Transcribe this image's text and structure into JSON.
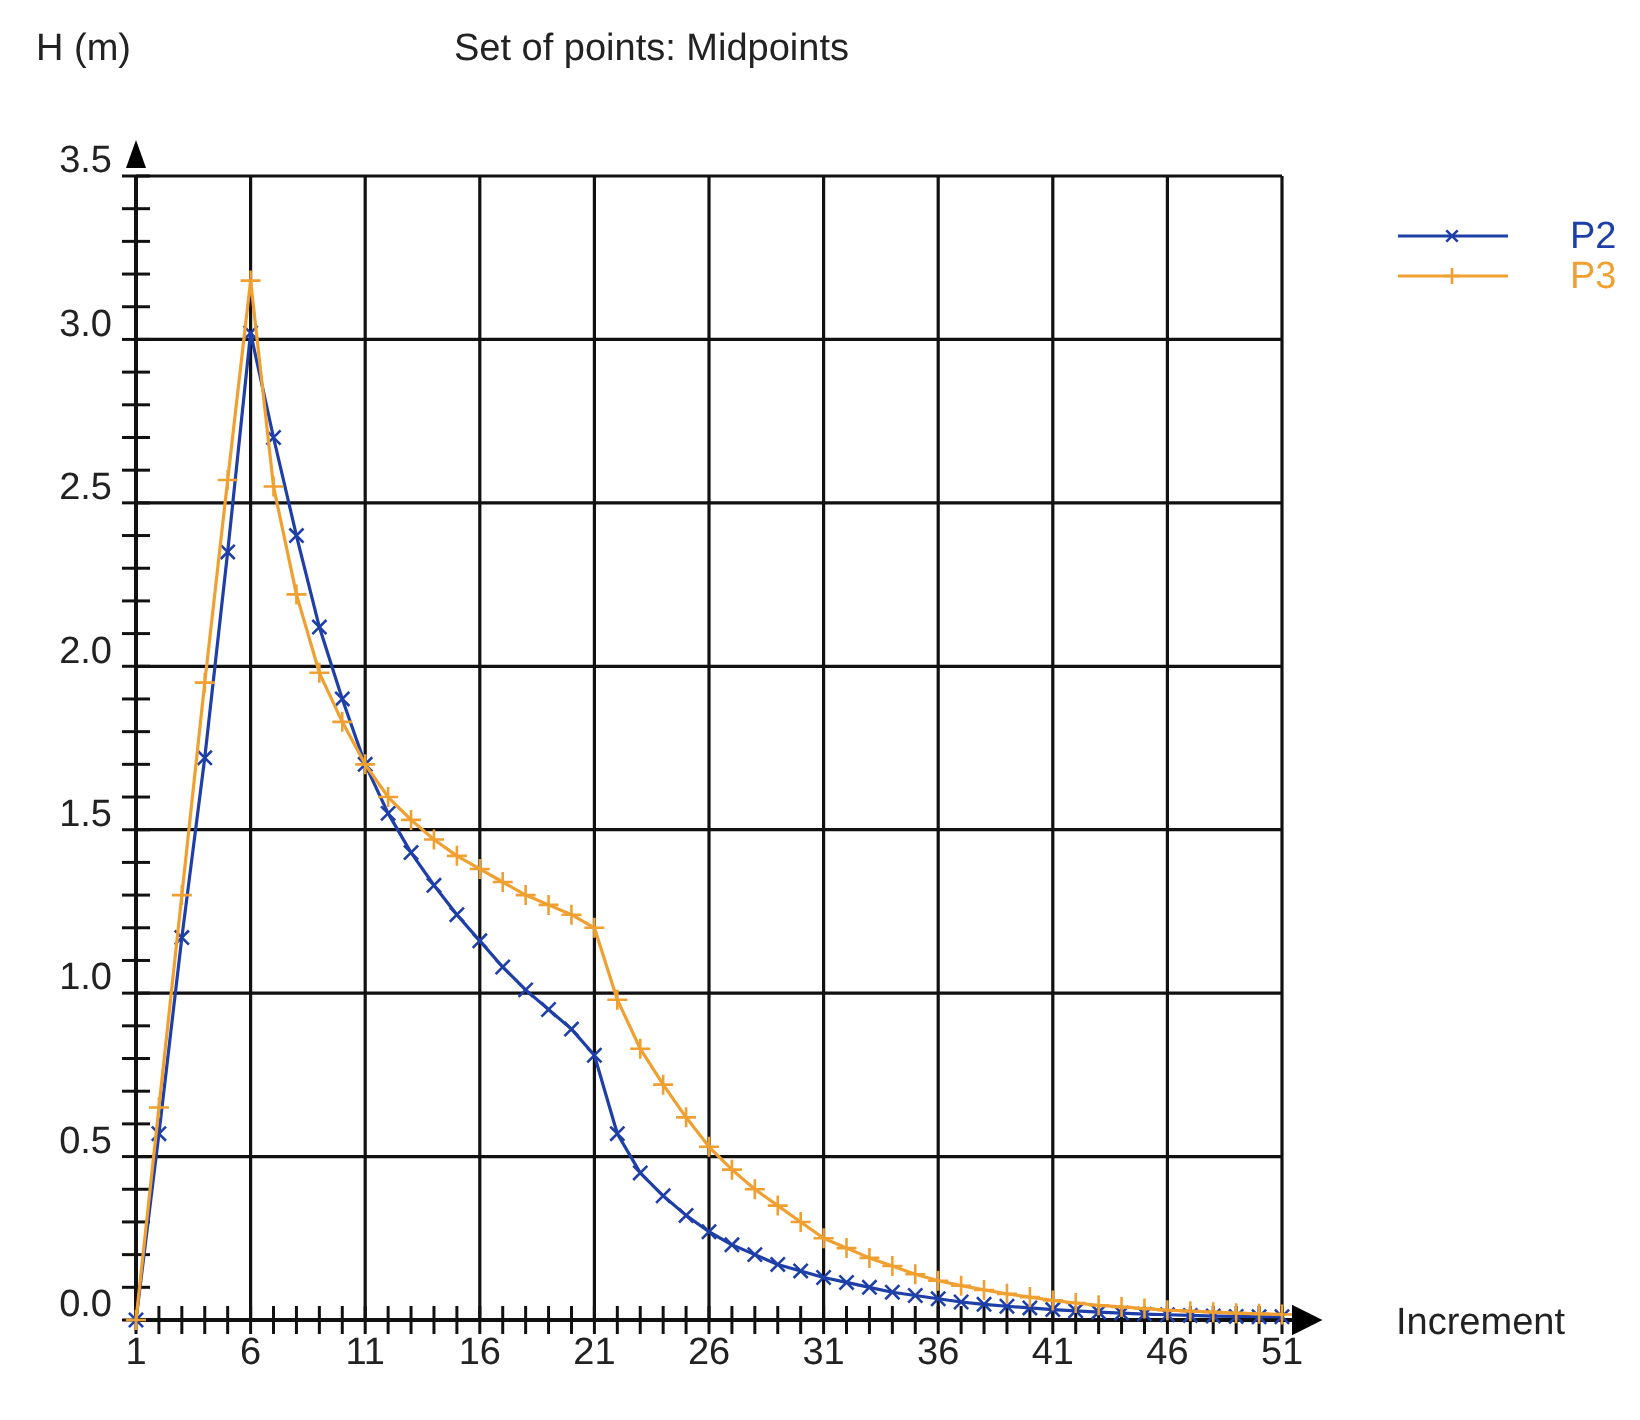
{
  "chart_data": {
    "type": "line",
    "title": "Set of points: Midpoints",
    "ylabel": "H (m)",
    "xlabel": "Increment",
    "x": [
      1,
      2,
      3,
      4,
      5,
      6,
      7,
      8,
      9,
      10,
      11,
      12,
      13,
      14,
      15,
      16,
      17,
      18,
      19,
      20,
      21,
      22,
      23,
      24,
      25,
      26,
      27,
      28,
      29,
      30,
      31,
      32,
      33,
      34,
      35,
      36,
      37,
      38,
      39,
      40,
      41,
      42,
      43,
      44,
      45,
      46,
      47,
      48,
      49,
      50,
      51
    ],
    "series": [
      {
        "name": "P2",
        "color": "#1f3fa8",
        "values": [
          0,
          0.57,
          1.17,
          1.72,
          2.35,
          3.02,
          2.7,
          2.4,
          2.12,
          1.9,
          1.7,
          1.55,
          1.43,
          1.33,
          1.24,
          1.16,
          1.08,
          1.01,
          0.95,
          0.89,
          0.81,
          0.57,
          0.45,
          0.38,
          0.32,
          0.27,
          0.23,
          0.2,
          0.17,
          0.15,
          0.13,
          0.115,
          0.1,
          0.085,
          0.075,
          0.065,
          0.055,
          0.048,
          0.042,
          0.037,
          0.032,
          0.028,
          0.024,
          0.021,
          0.018,
          0.016,
          0.014,
          0.012,
          0.011,
          0.01,
          0.01
        ]
      },
      {
        "name": "P3",
        "color": "#f0a030",
        "values": [
          0,
          0.65,
          1.3,
          1.95,
          2.57,
          3.18,
          2.55,
          2.22,
          1.98,
          1.83,
          1.7,
          1.6,
          1.53,
          1.47,
          1.42,
          1.38,
          1.34,
          1.3,
          1.27,
          1.24,
          1.2,
          0.98,
          0.83,
          0.72,
          0.62,
          0.53,
          0.46,
          0.4,
          0.35,
          0.3,
          0.25,
          0.22,
          0.19,
          0.165,
          0.14,
          0.12,
          0.105,
          0.092,
          0.08,
          0.07,
          0.06,
          0.052,
          0.045,
          0.04,
          0.035,
          0.03,
          0.027,
          0.024,
          0.021,
          0.019,
          0.017
        ]
      }
    ],
    "xlim": [
      1,
      51
    ],
    "xticks": [
      1,
      {
        "value": 2,
        "label": null
      },
      {
        "value": 3,
        "label": null
      },
      {
        "value": 4,
        "label": null
      },
      {
        "value": 5,
        "label": null
      },
      6,
      {
        "value": 7,
        "label": null
      },
      {
        "value": 8,
        "label": null
      },
      {
        "value": 9,
        "label": null
      },
      {
        "value": 10,
        "label": null
      },
      11,
      {
        "value": 12,
        "label": null
      },
      {
        "value": 13,
        "label": null
      },
      {
        "value": 14,
        "label": null
      },
      {
        "value": 15,
        "label": null
      },
      16,
      {
        "value": 17,
        "label": null
      },
      {
        "value": 18,
        "label": null
      },
      {
        "value": 19,
        "label": null
      },
      {
        "value": 20,
        "label": null
      },
      21,
      {
        "value": 22,
        "label": null
      },
      {
        "value": 23,
        "label": null
      },
      {
        "value": 24,
        "label": null
      },
      {
        "value": 25,
        "label": null
      },
      26,
      {
        "value": 27,
        "label": null
      },
      {
        "value": 28,
        "label": null
      },
      {
        "value": 29,
        "label": null
      },
      {
        "value": 30,
        "label": null
      },
      31,
      {
        "value": 32,
        "label": null
      },
      {
        "value": 33,
        "label": null
      },
      {
        "value": 34,
        "label": null
      },
      {
        "value": 35,
        "label": null
      },
      36,
      {
        "value": 37,
        "label": null
      },
      {
        "value": 38,
        "label": null
      },
      {
        "value": 39,
        "label": null
      },
      {
        "value": 40,
        "label": null
      },
      41,
      {
        "value": 42,
        "label": null
      },
      {
        "value": 43,
        "label": null
      },
      {
        "value": 44,
        "label": null
      },
      {
        "value": 45,
        "label": null
      },
      46,
      {
        "value": 47,
        "label": null
      },
      {
        "value": 48,
        "label": null
      },
      {
        "value": 49,
        "label": null
      },
      {
        "value": 50,
        "label": null
      },
      51
    ],
    "ylim": [
      0,
      3.5
    ],
    "yticks": [
      {
        "value": 0,
        "label": "0.0"
      },
      {
        "value": 0.1,
        "label": null
      },
      {
        "value": 0.2,
        "label": null
      },
      {
        "value": 0.3,
        "label": null
      },
      {
        "value": 0.4,
        "label": null
      },
      {
        "value": 0.5,
        "label": "0.5"
      },
      {
        "value": 0.6,
        "label": null
      },
      {
        "value": 0.7,
        "label": null
      },
      {
        "value": 0.8,
        "label": null
      },
      {
        "value": 0.9,
        "label": null
      },
      {
        "value": 1,
        "label": "1.0"
      },
      {
        "value": 1.1,
        "label": null
      },
      {
        "value": 1.2,
        "label": null
      },
      {
        "value": 1.3,
        "label": null
      },
      {
        "value": 1.4,
        "label": null
      },
      {
        "value": 1.5,
        "label": "1.5"
      },
      {
        "value": 1.6,
        "label": null
      },
      {
        "value": 1.7,
        "label": null
      },
      {
        "value": 1.8,
        "label": null
      },
      {
        "value": 1.9,
        "label": null
      },
      {
        "value": 2,
        "label": "2.0"
      },
      {
        "value": 2.1,
        "label": null
      },
      {
        "value": 2.2,
        "label": null
      },
      {
        "value": 2.3,
        "label": null
      },
      {
        "value": 2.4,
        "label": null
      },
      {
        "value": 2.5,
        "label": "2.5"
      },
      {
        "value": 2.6,
        "label": null
      },
      {
        "value": 2.7,
        "label": null
      },
      {
        "value": 2.8,
        "label": null
      },
      {
        "value": 2.9,
        "label": null
      },
      {
        "value": 3,
        "label": "3.0"
      },
      {
        "value": 3.1,
        "label": null
      },
      {
        "value": 3.2,
        "label": null
      },
      {
        "value": 3.3,
        "label": null
      },
      {
        "value": 3.4,
        "label": null
      },
      {
        "value": 3.5,
        "label": "3.5"
      }
    ],
    "grid": true,
    "legend": "top right",
    "marker": "cross",
    "line_style": "solid"
  }
}
